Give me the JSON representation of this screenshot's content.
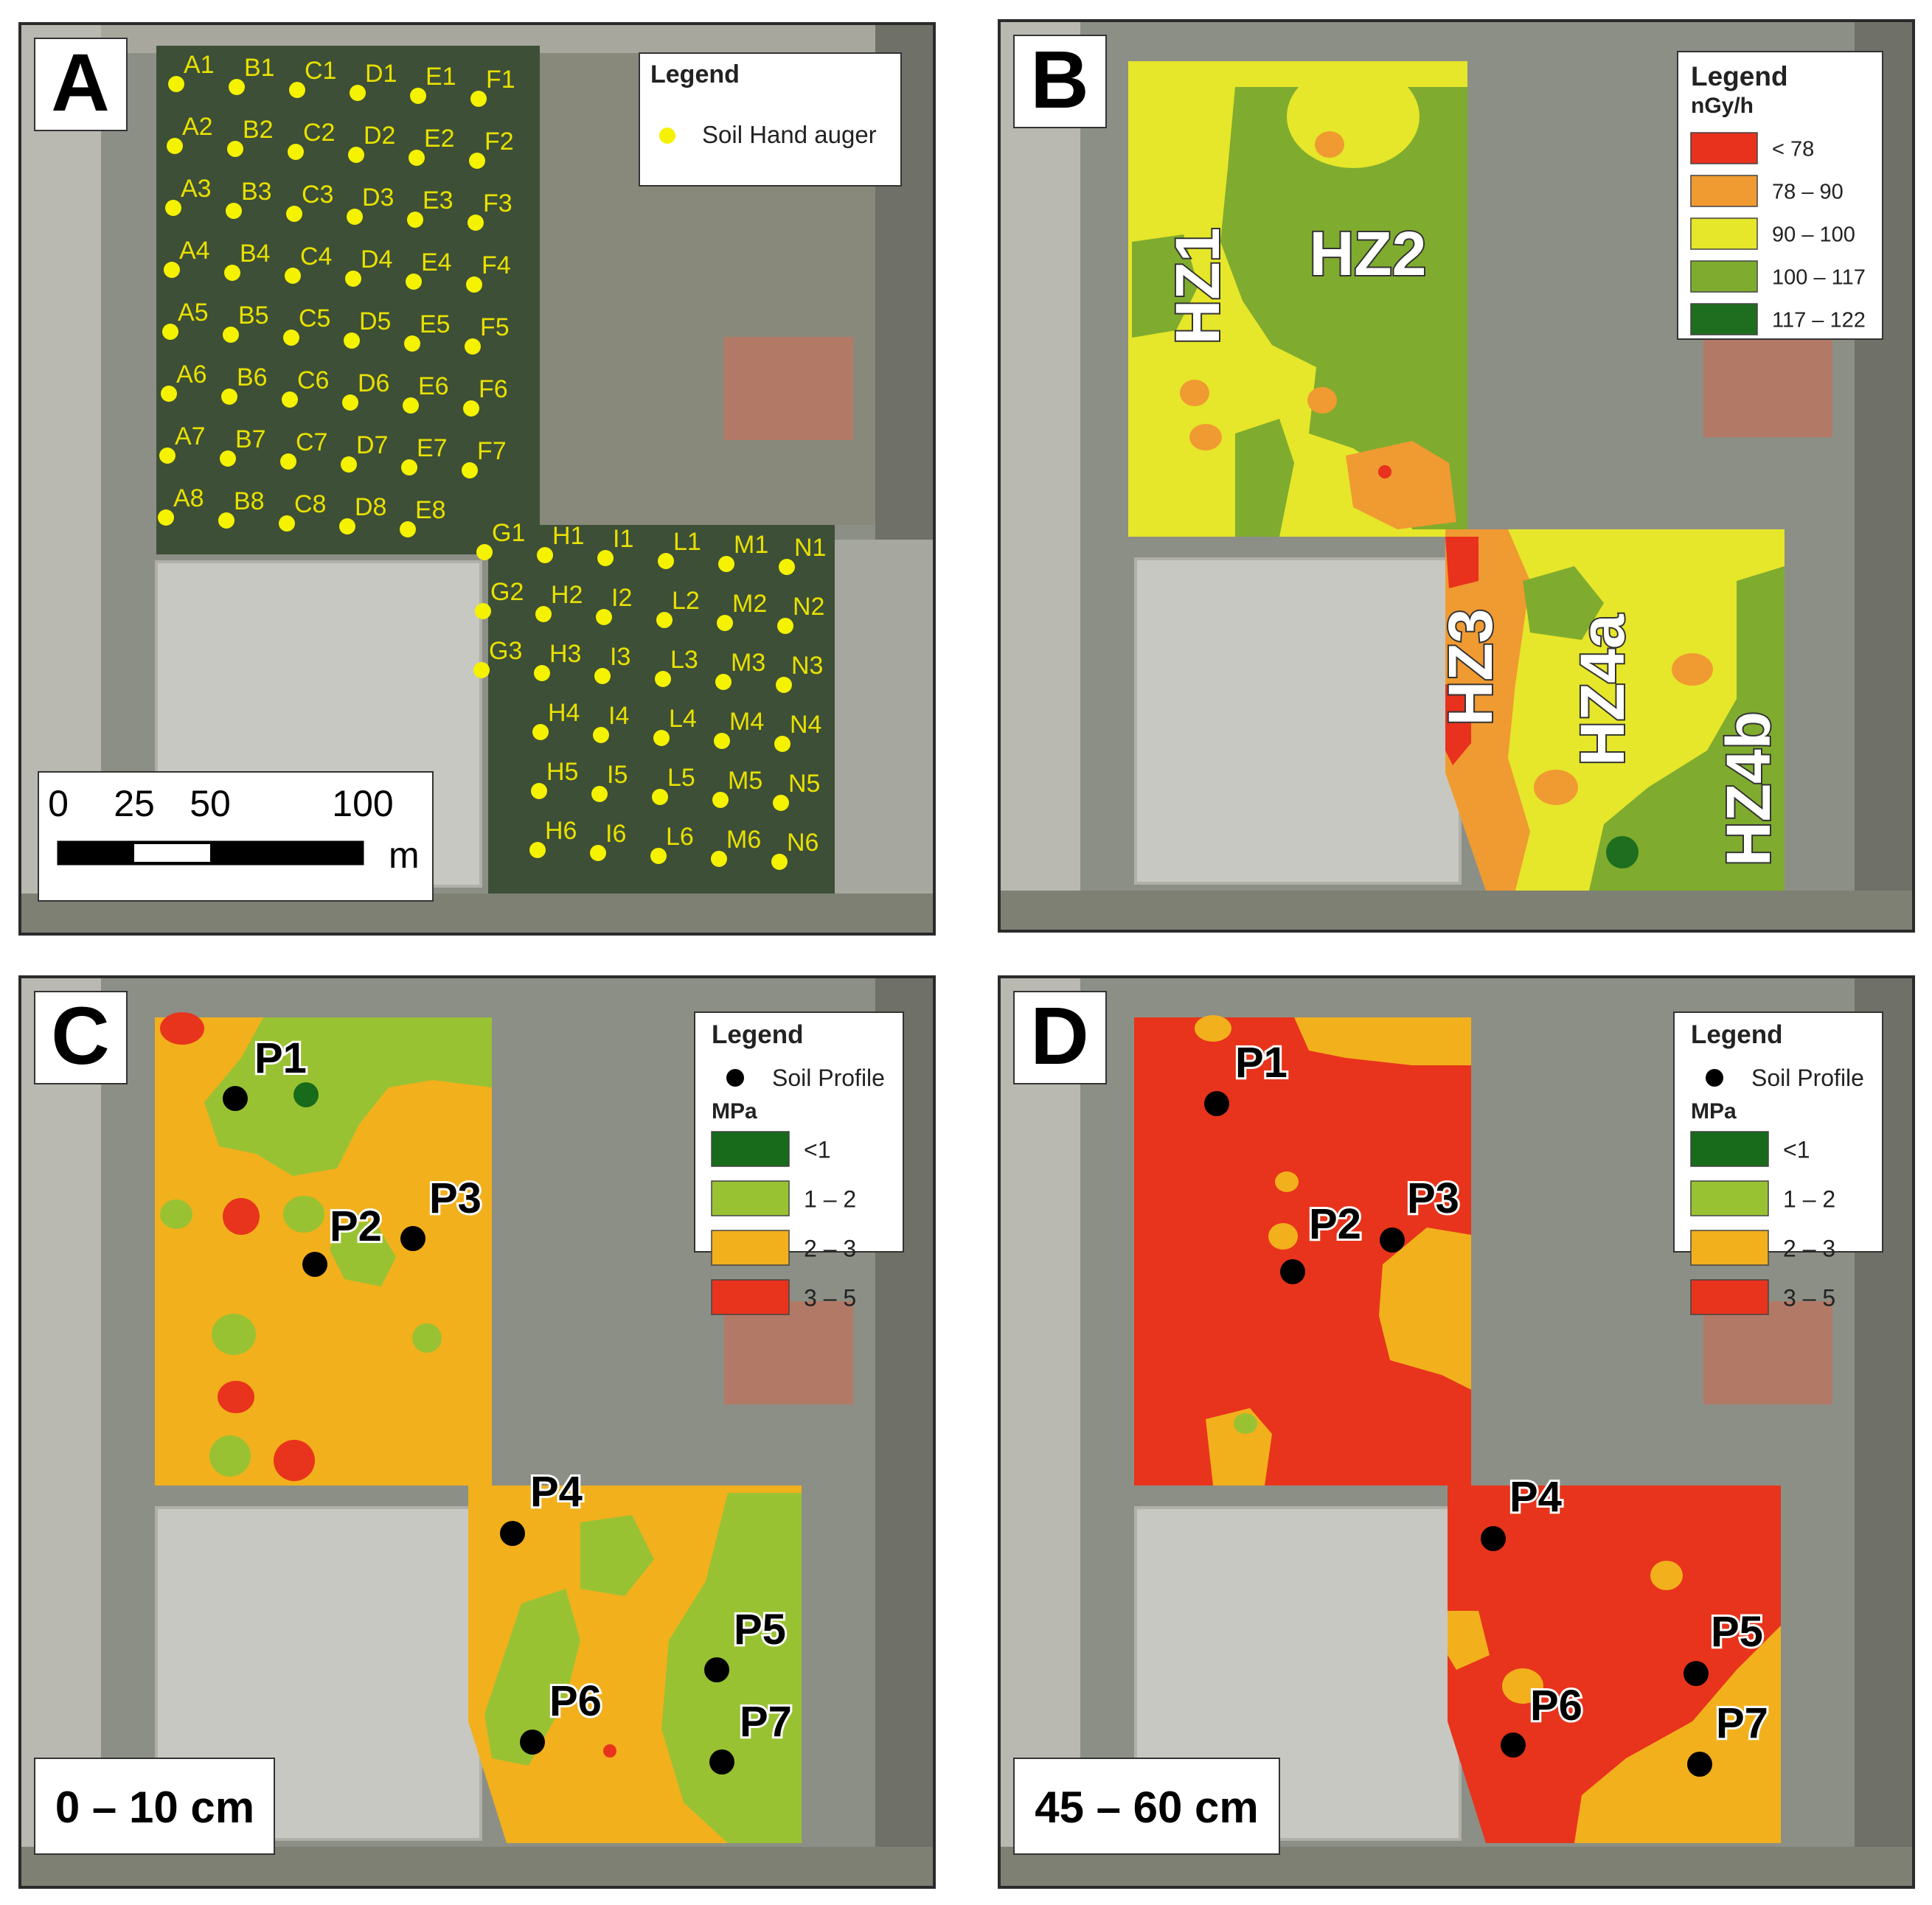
{
  "colors": {
    "frame": "#2b2b2b",
    "satellite_bg": "#8c8f86",
    "vegetation_dark": "#3d4f37",
    "building_roof": "#b27a66",
    "point_yellow": "#f5f200",
    "label_yellow": "#e8e000",
    "dose_lt78": "#e8321e",
    "dose_78_90": "#f09a32",
    "dose_90_100": "#e6e62a",
    "dose_100_117": "#7fac2e",
    "dose_117_122": "#1f6e1f",
    "mpa_lt1": "#176b1a",
    "mpa_1_2": "#99c233",
    "mpa_2_3": "#f2b01c",
    "mpa_3_5": "#e8341c"
  },
  "panels": {
    "A": {
      "letter": "A",
      "legend_title": "Legend",
      "legend_item": "Soil Hand auger",
      "scalebar": {
        "ticks": [
          "0",
          "25",
          "50",
          "100"
        ],
        "unit": "m"
      },
      "north_grid": {
        "columns": [
          "A",
          "B",
          "C",
          "D",
          "E",
          "F"
        ],
        "rows": [
          1,
          2,
          3,
          4,
          5,
          6,
          7,
          8
        ],
        "missing": [
          "F8"
        ]
      },
      "south_grid": {
        "columns": [
          "G",
          "H",
          "I",
          "L",
          "M",
          "N"
        ],
        "rows": [
          1,
          2,
          3,
          4,
          5,
          6
        ],
        "missing": [
          "G4",
          "G5",
          "G6"
        ]
      }
    },
    "B": {
      "letter": "B",
      "legend_title": "Legend",
      "legend_unit": "nGy/h",
      "classes": [
        "< 78",
        "78 – 90",
        "90 – 100",
        "100 – 117",
        "117 – 122"
      ],
      "zones": [
        "HZ1",
        "HZ2",
        "HZ3",
        "HZ4a",
        "HZ4b"
      ]
    },
    "C": {
      "letter": "C",
      "legend_title": "Legend",
      "legend_point": "Soil Profile",
      "legend_unit": "MPa",
      "classes": [
        "<1",
        "1 – 2",
        "2 – 3",
        "3 – 5"
      ],
      "depth": "0 – 10 cm",
      "profiles": [
        "P1",
        "P2",
        "P3",
        "P4",
        "P5",
        "P6",
        "P7"
      ]
    },
    "D": {
      "letter": "D",
      "legend_title": "Legend",
      "legend_point": "Soil Profile",
      "legend_unit": "MPa",
      "classes": [
        "<1",
        "1 – 2",
        "2 – 3",
        "3 – 5"
      ],
      "depth": "45 – 60 cm",
      "profiles": [
        "P1",
        "P2",
        "P3",
        "P4",
        "P5",
        "P6",
        "P7"
      ]
    }
  }
}
